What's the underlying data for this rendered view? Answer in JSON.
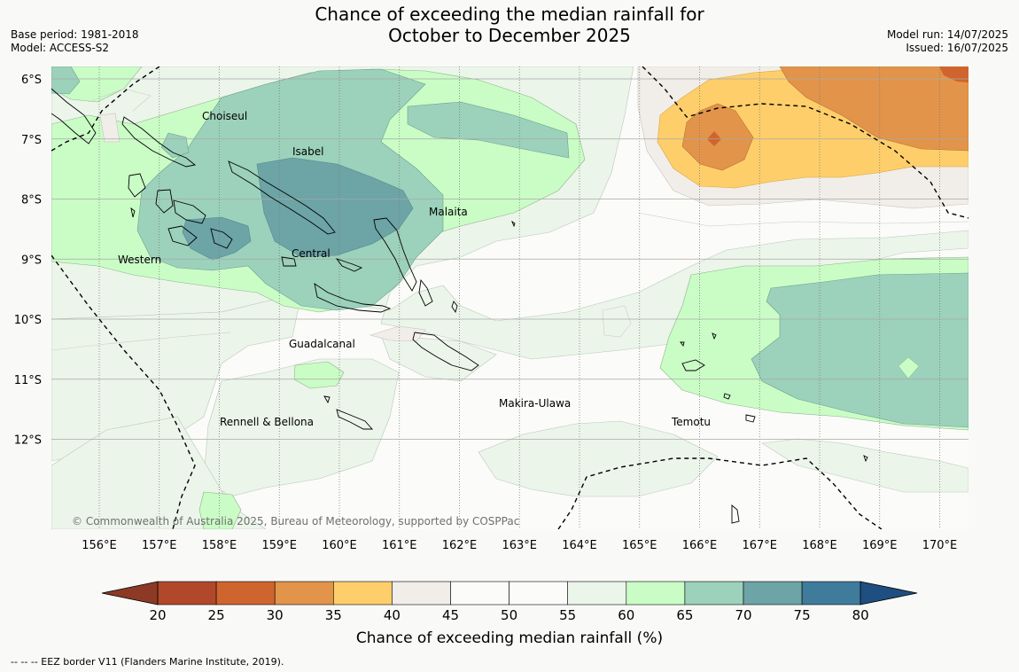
{
  "title_line1": "Chance of exceeding the median rainfall for",
  "title_line2": "October to December 2025",
  "meta_left": [
    "Base period: 1981-2018",
    "Model: ACCESS-S2"
  ],
  "meta_right": [
    "Model run: 14/07/2025",
    "Issued: 16/07/2025"
  ],
  "map": {
    "lon_ticks": [
      "156°E",
      "157°E",
      "158°E",
      "159°E",
      "160°E",
      "161°E",
      "162°E",
      "163°E",
      "164°E",
      "165°E",
      "166°E",
      "167°E",
      "168°E",
      "169°E",
      "170°E"
    ],
    "lat_ticks": [
      "6°S",
      "7°S",
      "8°S",
      "9°S",
      "10°S",
      "11°S",
      "12°S"
    ],
    "province_labels": [
      {
        "name": "Choiseul"
      },
      {
        "name": "Isabel"
      },
      {
        "name": "Malaita"
      },
      {
        "name": "Western"
      },
      {
        "name": "Central"
      },
      {
        "name": "Guadalcanal"
      },
      {
        "name": "Makira-Ulawa"
      },
      {
        "name": "Rennell & Bellona"
      },
      {
        "name": "Temotu"
      }
    ],
    "copyright": "© Commonwealth of Australia 2025, Bureau of Meteorology, supported by COSPPac"
  },
  "colorbar": {
    "ticks": [
      "20",
      "25",
      "30",
      "35",
      "40",
      "45",
      "50",
      "55",
      "60",
      "65",
      "70",
      "75",
      "80"
    ],
    "colors": [
      "#b2482a",
      "#d0642e",
      "#e2944a",
      "#fece6b",
      "#f1eee9",
      "#fbfbf9",
      "#fbfbf9",
      "#ecf5ea",
      "#cafdc6",
      "#9cd1bb",
      "#6da4a6",
      "#3f7b9b"
    ],
    "under_color": "#8c3a25",
    "over_color": "#1f4e80",
    "label": "Chance of exceeding median rainfall (%)"
  },
  "footnote": "--  --  -- EEZ border V11 (Flanders Marine Institute, 2019)."
}
